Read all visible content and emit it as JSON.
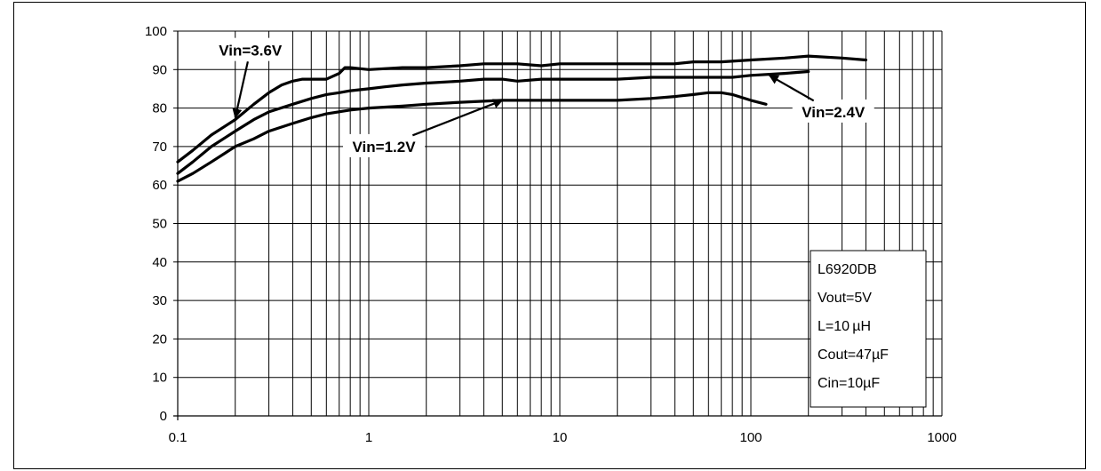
{
  "chart_data": {
    "type": "line",
    "title": "",
    "xlabel": "",
    "ylabel": "",
    "x_scale": "log",
    "xlim": [
      0.1,
      1000
    ],
    "ylim": [
      0,
      100
    ],
    "grid": true,
    "x_ticks": [
      "0.1",
      "1",
      "10",
      "100",
      "1000"
    ],
    "y_ticks": [
      "0",
      "10",
      "20",
      "30",
      "40",
      "50",
      "60",
      "70",
      "80",
      "90",
      "100"
    ],
    "series": [
      {
        "name": "Vin=3.6V",
        "x": [
          0.1,
          0.12,
          0.15,
          0.2,
          0.25,
          0.3,
          0.35,
          0.4,
          0.45,
          0.5,
          0.6,
          0.7,
          0.75,
          0.8,
          1,
          1.5,
          2,
          3,
          4,
          5,
          6,
          8,
          10,
          15,
          20,
          30,
          40,
          50,
          70,
          100,
          150,
          200,
          300,
          400
        ],
        "y": [
          66,
          69,
          73,
          77,
          81,
          84,
          86,
          87,
          87.5,
          87.5,
          87.5,
          89,
          90.5,
          90.5,
          90,
          90.5,
          90.5,
          91,
          91.5,
          91.5,
          91.5,
          91,
          91.5,
          91.5,
          91.5,
          91.5,
          91.5,
          92,
          92,
          92.5,
          93,
          93.5,
          93,
          92.5
        ]
      },
      {
        "name": "Vin=2.4V",
        "x": [
          0.1,
          0.12,
          0.15,
          0.2,
          0.25,
          0.3,
          0.4,
          0.5,
          0.6,
          0.7,
          0.8,
          1,
          1.2,
          1.5,
          2,
          3,
          4,
          5,
          6,
          8,
          10,
          15,
          20,
          30,
          50,
          80,
          100,
          150,
          200
        ],
        "y": [
          63,
          66,
          70,
          74,
          77,
          79,
          81,
          82.5,
          83.5,
          84,
          84.5,
          85,
          85.5,
          86,
          86.5,
          87,
          87.5,
          87.5,
          87,
          87.5,
          87.5,
          87.5,
          87.5,
          88,
          88,
          88,
          88.5,
          89,
          89.5
        ]
      },
      {
        "name": "Vin=1.2V",
        "x": [
          0.1,
          0.12,
          0.15,
          0.2,
          0.25,
          0.3,
          0.4,
          0.5,
          0.6,
          0.8,
          1,
          1.5,
          2,
          3,
          5,
          10,
          20,
          30,
          40,
          50,
          60,
          70,
          80,
          100,
          120
        ],
        "y": [
          61,
          63,
          66,
          70,
          72,
          74,
          76,
          77.5,
          78.5,
          79.5,
          80,
          80.5,
          81,
          81.5,
          82,
          82,
          82,
          82.5,
          83,
          83.5,
          84,
          84,
          83.5,
          82,
          81
        ]
      }
    ],
    "annotations": [
      {
        "text": "Vin=3.6V",
        "x": 0.2,
        "y": 77.5,
        "label_x": 0.24,
        "label_y": 95
      },
      {
        "text": "Vin=2.4V",
        "x": 125,
        "y": 88.5,
        "label_x": 270,
        "label_y": 79
      },
      {
        "text": "Vin=1.2V",
        "x": 5,
        "y": 82,
        "label_x": 1.2,
        "label_y": 70
      }
    ],
    "info_box": [
      "L6920DB",
      "Vout=5V",
      "L=10 µH",
      "Cout=47µF",
      "Cin=10µF"
    ]
  }
}
